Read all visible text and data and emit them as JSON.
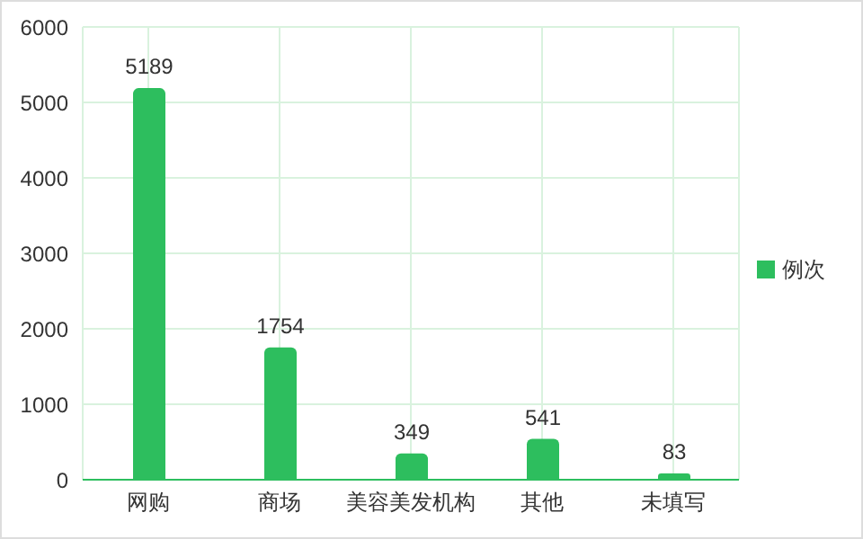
{
  "chart_data": {
    "type": "bar",
    "categories": [
      "网购",
      "商场",
      "美容美发机构",
      "其他",
      "未填写"
    ],
    "series": [
      {
        "name": "例次",
        "color": "#2dbe5e",
        "values": [
          5189,
          1754,
          349,
          541,
          83
        ]
      }
    ],
    "ylim": [
      0,
      6000
    ],
    "yticks": [
      0,
      1000,
      2000,
      3000,
      4000,
      5000,
      6000
    ],
    "grid": true,
    "legend": "right",
    "data_labels": true
  }
}
